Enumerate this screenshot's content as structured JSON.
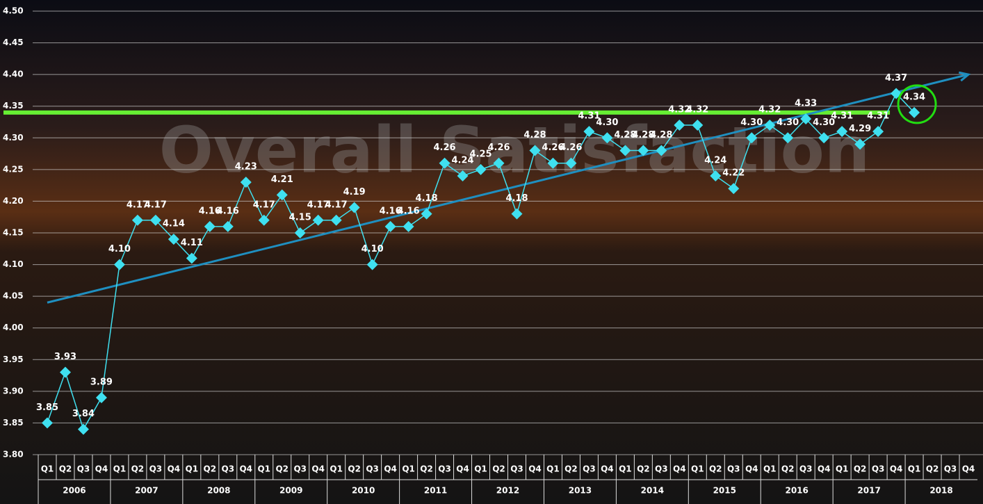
{
  "chart_data": {
    "type": "line",
    "watermark": "Overall Satisfaction",
    "categories": [
      "Q1",
      "Q2",
      "Q3",
      "Q4",
      "Q1",
      "Q2",
      "Q3",
      "Q4",
      "Q1",
      "Q2",
      "Q3",
      "Q4",
      "Q1",
      "Q2",
      "Q3",
      "Q4",
      "Q1",
      "Q2",
      "Q3",
      "Q4",
      "Q1",
      "Q2",
      "Q3",
      "Q4",
      "Q1",
      "Q2",
      "Q3",
      "Q4",
      "Q1",
      "Q2",
      "Q3",
      "Q4",
      "Q1",
      "Q2",
      "Q3",
      "Q4",
      "Q1",
      "Q2",
      "Q3",
      "Q4",
      "Q1",
      "Q2",
      "Q3",
      "Q4",
      "Q1",
      "Q2",
      "Q3",
      "Q4",
      "Q1",
      "Q2",
      "Q3",
      "Q4"
    ],
    "years": [
      "2006",
      "2007",
      "2008",
      "2009",
      "2010",
      "2011",
      "2012",
      "2013",
      "2014",
      "2015",
      "2016",
      "2017",
      "2018"
    ],
    "series": [
      {
        "color": "#3fe0f0",
        "values": [
          3.85,
          3.93,
          3.84,
          3.89,
          4.1,
          4.17,
          4.17,
          4.14,
          4.11,
          4.16,
          4.16,
          4.23,
          4.17,
          4.21,
          4.15,
          4.17,
          4.17,
          4.19,
          4.1,
          4.16,
          4.16,
          4.18,
          4.26,
          4.24,
          4.25,
          4.26,
          4.18,
          4.28,
          4.26,
          4.26,
          4.31,
          4.3,
          4.28,
          4.28,
          4.28,
          4.32,
          4.32,
          4.24,
          4.22,
          4.3,
          4.32,
          4.3,
          4.33,
          4.3,
          4.31,
          4.29,
          4.31,
          4.37,
          4.34,
          null,
          null,
          null
        ],
        "value_labels": [
          "3.85",
          "3.93",
          "3.84",
          "3.89",
          "4.10",
          "4.17",
          "4.17",
          "4.14",
          "4.11",
          "4.16",
          "4.16",
          "4.23",
          "4.17",
          "4.21",
          "4.15",
          "4.17",
          "4.17",
          "4.19",
          "4.10",
          "4.16",
          "4.16",
          "4.18",
          "4.26",
          "4.24",
          "4.25",
          "4.26",
          "4.18",
          "4.28",
          "4.26",
          "4.26",
          "4.31",
          "4.30",
          "4.28",
          "4.28",
          "4.28",
          "4.32",
          "4.32",
          "4.24",
          "4.22",
          "4.30",
          "4.32",
          "4.30",
          "4.33",
          "4.30",
          "4.31",
          "4.29",
          "4.31",
          "4.37",
          "4.34",
          null,
          null,
          null
        ]
      }
    ],
    "trend_line": {
      "color": "#1f8fc0",
      "values": [
        4.04,
        4.4
      ]
    },
    "reference_line": {
      "color": "#66ee33",
      "value": 4.34
    },
    "ylim": [
      3.8,
      4.5
    ],
    "yticks": [
      {
        "value": 3.8,
        "label": "3.80"
      },
      3.85,
      {
        "value": 3.9,
        "label": "3.90"
      },
      3.95,
      {
        "value": 4.0,
        "label": "4.00"
      },
      4.05,
      {
        "value": 4.1,
        "label": "4.10"
      },
      4.15,
      {
        "value": 4.2,
        "label": "4.20"
      },
      4.25,
      {
        "value": 4.3,
        "label": "4.30"
      },
      4.35,
      {
        "value": 4.4,
        "label": "4.40"
      },
      4.45,
      {
        "value": 4.5,
        "label": "4.50"
      }
    ],
    "grid": true
  }
}
